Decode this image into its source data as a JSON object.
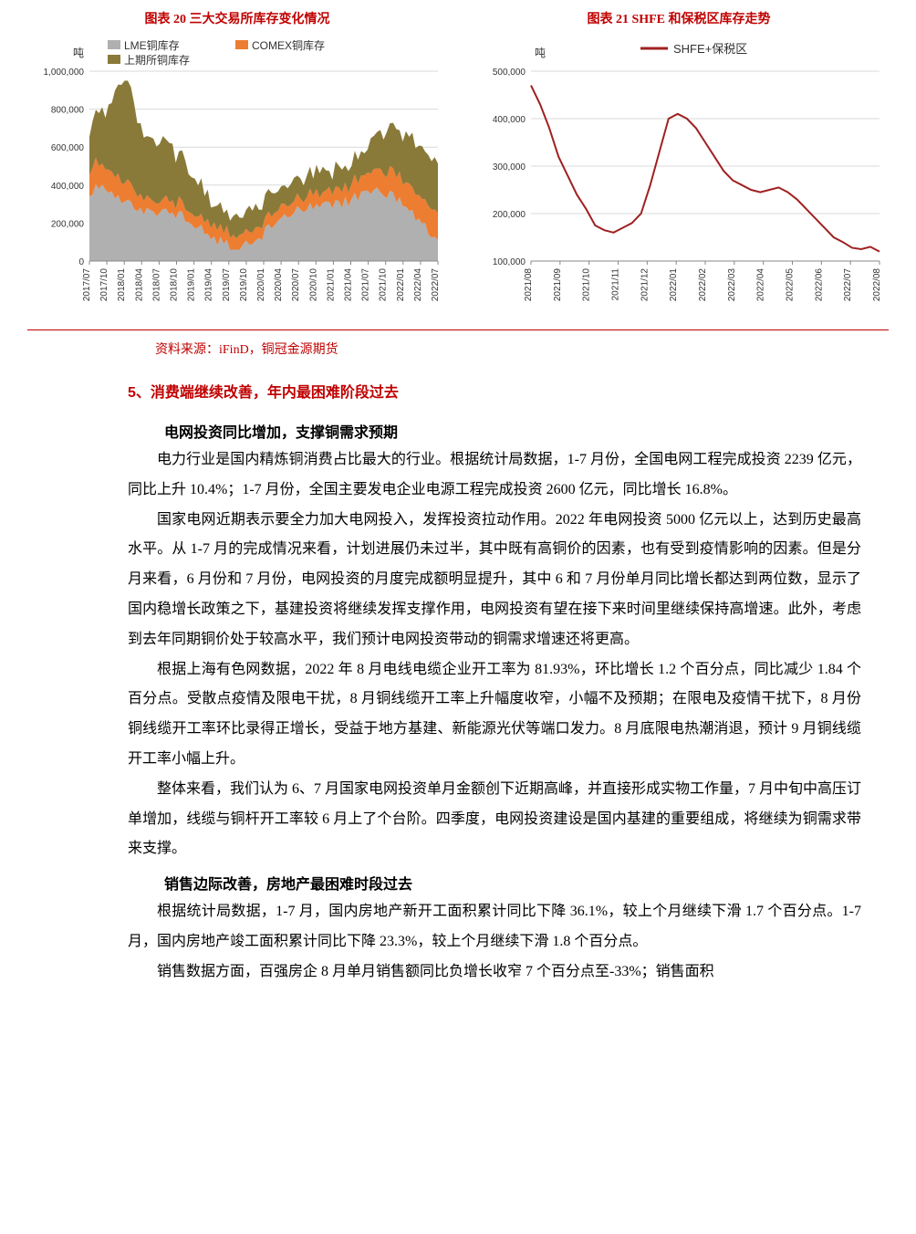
{
  "chart_left": {
    "title": "图表 20  三大交易所库存变化情况",
    "type": "stacked_area",
    "unit_label": "吨",
    "legend": [
      {
        "label": "LME铜库存",
        "color": "#b0b0b0"
      },
      {
        "label": "COMEX铜库存",
        "color": "#ed7d31"
      },
      {
        "label": "上期所铜库存",
        "color": "#8a7a3a"
      }
    ],
    "ylim": [
      0,
      1000000
    ],
    "ytick_step": 200000,
    "yticks": [
      "0",
      "200,000",
      "400,000",
      "600,000",
      "800,000",
      "1,000,000"
    ],
    "x_labels": [
      "2017/07",
      "2017/10",
      "2018/01",
      "2018/04",
      "2018/07",
      "2018/10",
      "2019/01",
      "2019/04",
      "2019/07",
      "2019/10",
      "2020/01",
      "2020/04",
      "2020/07",
      "2020/10",
      "2021/01",
      "2021/04",
      "2021/07",
      "2021/10",
      "2022/01",
      "2022/04",
      "2022/07"
    ],
    "background_color": "#ffffff",
    "grid_color": "#d9d9d9",
    "label_fontsize": 11,
    "axis_fontsize": 10
  },
  "chart_right": {
    "title": "图表 21  SHFE 和保税区库存走势",
    "type": "line",
    "unit_label": "吨",
    "legend": [
      {
        "label": "SHFE+保税区",
        "color": "#a02020"
      }
    ],
    "ylim": [
      100000,
      500000
    ],
    "ytick_step": 100000,
    "yticks": [
      "100,000",
      "200,000",
      "300,000",
      "400,000",
      "500,000"
    ],
    "x_labels": [
      "2021/08",
      "2021/09",
      "2021/10",
      "2021/11",
      "2021/12",
      "2022/01",
      "2022/02",
      "2022/03",
      "2022/04",
      "2022/05",
      "2022/06",
      "2022/07",
      "2022/08"
    ],
    "line_width": 2,
    "background_color": "#ffffff",
    "grid_color": "#d9d9d9",
    "label_fontsize": 11,
    "axis_fontsize": 10,
    "data": [
      470000,
      430000,
      380000,
      320000,
      280000,
      240000,
      210000,
      175000,
      165000,
      160000,
      170000,
      180000,
      200000,
      260000,
      330000,
      400000,
      410000,
      400000,
      380000,
      350000,
      320000,
      290000,
      270000,
      260000,
      250000,
      245000,
      250000,
      255000,
      245000,
      230000,
      210000,
      190000,
      170000,
      150000,
      140000,
      128000,
      125000,
      130000,
      120000
    ]
  },
  "source_text": "资料来源：iFinD，铜冠金源期货",
  "section_heading": "5、消费端继续改善，年内最困难阶段过去",
  "subheading_1": "电网投资同比增加，支撑铜需求预期",
  "para_1": "电力行业是国内精炼铜消费占比最大的行业。根据统计局数据，1-7 月份，全国电网工程完成投资 2239 亿元，同比上升 10.4%；1-7 月份，全国主要发电企业电源工程完成投资 2600 亿元，同比增长 16.8%。",
  "para_2": "国家电网近期表示要全力加大电网投入，发挥投资拉动作用。2022 年电网投资 5000 亿元以上，达到历史最高水平。从 1-7 月的完成情况来看，计划进展仍未过半，其中既有高铜价的因素，也有受到疫情影响的因素。但是分月来看，6 月份和 7 月份，电网投资的月度完成额明显提升，其中 6 和 7 月份单月同比增长都达到两位数，显示了国内稳增长政策之下，基建投资将继续发挥支撑作用，电网投资有望在接下来时间里继续保持高增速。此外，考虑到去年同期铜价处于较高水平，我们预计电网投资带动的铜需求增速还将更高。",
  "para_3": "根据上海有色网数据，2022 年 8 月电线电缆企业开工率为 81.93%，环比增长 1.2 个百分点，同比减少 1.84 个百分点。受散点疫情及限电干扰，8 月铜线缆开工率上升幅度收窄，小幅不及预期；在限电及疫情干扰下，8 月份铜线缆开工率环比录得正增长，受益于地方基建、新能源光伏等端口发力。8 月底限电热潮消退，预计 9 月铜线缆开工率小幅上升。",
  "para_4": "整体来看，我们认为 6、7 月国家电网投资单月金额创下近期高峰，并直接形成实物工作量，7 月中旬中高压订单增加，线缆与铜杆开工率较 6 月上了个台阶。四季度，电网投资建设是国内基建的重要组成，将继续为铜需求带来支撑。",
  "subheading_2": "销售边际改善，房地产最困难时段过去",
  "para_5": "根据统计局数据，1-7 月，国内房地产新开工面积累计同比下降 36.1%，较上个月继续下滑 1.7 个百分点。1-7 月，国内房地产竣工面积累计同比下降 23.3%，较上个月继续下滑 1.8 个百分点。",
  "para_6": "销售数据方面，百强房企 8 月单月销售额同比负增长收窄 7 个百分点至-33%；销售面积"
}
